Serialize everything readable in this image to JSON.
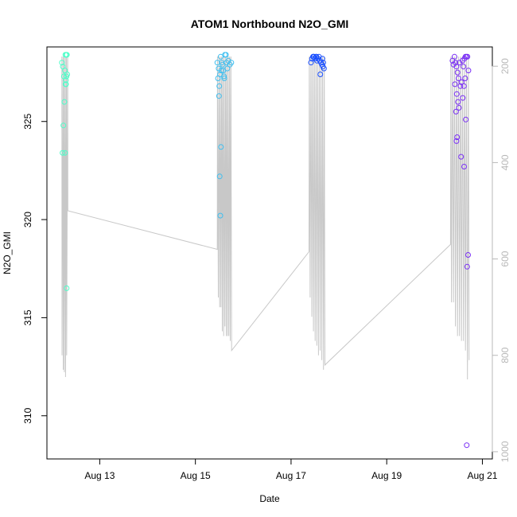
{
  "chart_data": {
    "type": "scatter",
    "title": "ATOM1 Northbound N2O_GMI",
    "xlabel": "Date",
    "ylabel": "N2O_GMI",
    "x_type": "date",
    "xlim": [
      "2016-08-11T21:30",
      "2016-08-21T05:00"
    ],
    "ylim": [
      307.8,
      328.8
    ],
    "x_ticks": [
      {
        "value": "2016-08-13T00:00",
        "label": "Aug 13"
      },
      {
        "value": "2016-08-15T00:00",
        "label": "Aug 15"
      },
      {
        "value": "2016-08-17T00:00",
        "label": "Aug 17"
      },
      {
        "value": "2016-08-19T00:00",
        "label": "Aug 19"
      },
      {
        "value": "2016-08-21T00:00",
        "label": "Aug 21"
      }
    ],
    "y_ticks": [
      310,
      315,
      320,
      325
    ],
    "right_axis": {
      "ylim_inverted": [
        1015,
        160
      ],
      "ticks": [
        200,
        400,
        600,
        800,
        1000
      ],
      "color": "#b8b8b8"
    },
    "grid": false,
    "series": [
      {
        "color": "#4dffc9",
        "points": [
          [
            "2016-08-12T05:00",
            328.0
          ],
          [
            "2016-08-12T05:30",
            327.8
          ],
          [
            "2016-08-12T06:00",
            327.3
          ],
          [
            "2016-08-12T06:15",
            326.0
          ],
          [
            "2016-08-12T05:45",
            324.8
          ],
          [
            "2016-08-12T05:20",
            323.4
          ],
          [
            "2016-08-12T06:30",
            327.6
          ],
          [
            "2016-08-12T06:45",
            328.4
          ],
          [
            "2016-08-12T07:15",
            328.4
          ],
          [
            "2016-08-12T07:30",
            328.4
          ],
          [
            "2016-08-12T07:00",
            327.1
          ],
          [
            "2016-08-12T07:20",
            327.3
          ],
          [
            "2016-08-12T07:40",
            327.4
          ],
          [
            "2016-08-12T06:50",
            326.9
          ],
          [
            "2016-08-12T06:35",
            323.4
          ],
          [
            "2016-08-12T07:05",
            326.9
          ],
          [
            "2016-08-12T07:25",
            316.5
          ]
        ]
      },
      {
        "color": "#3fbff0",
        "points": [
          [
            "2016-08-15T11:00",
            328.0
          ],
          [
            "2016-08-15T11:40",
            327.7
          ],
          [
            "2016-08-15T12:20",
            327.4
          ],
          [
            "2016-08-15T11:20",
            327.2
          ],
          [
            "2016-08-15T12:00",
            326.8
          ],
          [
            "2016-08-15T11:50",
            326.3
          ],
          [
            "2016-08-15T12:40",
            328.3
          ],
          [
            "2016-08-15T13:10",
            328.0
          ],
          [
            "2016-08-15T13:40",
            327.9
          ],
          [
            "2016-08-15T14:00",
            327.6
          ],
          [
            "2016-08-15T14:30",
            327.2
          ],
          [
            "2016-08-15T13:00",
            327.6
          ],
          [
            "2016-08-15T14:20",
            327.3
          ],
          [
            "2016-08-15T15:20",
            328.4
          ],
          [
            "2016-08-15T16:30",
            328.1
          ],
          [
            "2016-08-15T17:20",
            327.9
          ],
          [
            "2016-08-15T18:00",
            328.0
          ],
          [
            "2016-08-15T16:00",
            327.7
          ],
          [
            "2016-08-15T15:40",
            328.0
          ],
          [
            "2016-08-15T14:50",
            328.4
          ],
          [
            "2016-08-15T12:10",
            322.2
          ],
          [
            "2016-08-15T12:50",
            323.7
          ],
          [
            "2016-08-15T12:30",
            320.2
          ]
        ]
      },
      {
        "color": "#1a4fff",
        "points": [
          [
            "2016-08-17T10:00",
            328.0
          ],
          [
            "2016-08-17T10:30",
            328.2
          ],
          [
            "2016-08-17T11:00",
            328.3
          ],
          [
            "2016-08-17T11:30",
            328.3
          ],
          [
            "2016-08-17T12:00",
            328.2
          ],
          [
            "2016-08-17T12:30",
            328.3
          ],
          [
            "2016-08-17T13:00",
            328.1
          ],
          [
            "2016-08-17T13:30",
            328.2
          ],
          [
            "2016-08-17T14:00",
            328.3
          ],
          [
            "2016-08-17T14:30",
            328.1
          ],
          [
            "2016-08-17T15:00",
            328.0
          ],
          [
            "2016-08-17T15:30",
            327.9
          ],
          [
            "2016-08-17T16:00",
            327.8
          ],
          [
            "2016-08-17T16:30",
            327.7
          ],
          [
            "2016-08-17T14:40",
            327.4
          ],
          [
            "2016-08-17T11:15",
            328.3
          ],
          [
            "2016-08-17T12:45",
            328.3
          ],
          [
            "2016-08-17T15:45",
            328.2
          ],
          [
            "2016-08-17T16:10",
            328.0
          ]
        ]
      },
      {
        "color": "#7a2ff5",
        "points": [
          [
            "2016-08-20T09:00",
            328.1
          ],
          [
            "2016-08-20T09:30",
            327.9
          ],
          [
            "2016-08-20T10:00",
            328.3
          ],
          [
            "2016-08-20T10:30",
            328.0
          ],
          [
            "2016-08-20T11:00",
            327.8
          ],
          [
            "2016-08-20T11:30",
            327.5
          ],
          [
            "2016-08-20T12:00",
            327.2
          ],
          [
            "2016-08-20T12:30",
            328.0
          ],
          [
            "2016-08-20T10:15",
            326.9
          ],
          [
            "2016-08-20T11:10",
            326.4
          ],
          [
            "2016-08-20T11:45",
            326.0
          ],
          [
            "2016-08-20T10:45",
            325.5
          ],
          [
            "2016-08-20T12:15",
            325.7
          ],
          [
            "2016-08-20T11:20",
            324.2
          ],
          [
            "2016-08-20T11:00",
            324.0
          ],
          [
            "2016-08-20T13:00",
            326.8
          ],
          [
            "2016-08-20T13:30",
            327.0
          ],
          [
            "2016-08-20T14:00",
            328.1
          ],
          [
            "2016-08-20T14:30",
            327.8
          ],
          [
            "2016-08-20T15:00",
            328.2
          ],
          [
            "2016-08-20T15:30",
            328.3
          ],
          [
            "2016-08-20T16:00",
            328.3
          ],
          [
            "2016-08-20T16:30",
            328.3
          ],
          [
            "2016-08-20T17:00",
            327.6
          ],
          [
            "2016-08-20T15:20",
            327.2
          ],
          [
            "2016-08-20T14:45",
            326.8
          ],
          [
            "2016-08-20T14:10",
            326.2
          ],
          [
            "2016-08-20T14:50",
            322.7
          ],
          [
            "2016-08-20T13:20",
            323.2
          ],
          [
            "2016-08-20T15:40",
            325.1
          ],
          [
            "2016-08-20T16:20",
            317.6
          ],
          [
            "2016-08-20T16:50",
            318.2
          ],
          [
            "2016-08-20T16:10",
            308.5
          ]
        ]
      }
    ],
    "secondary_line": {
      "color": "#c8c8c8",
      "points": [
        [
          "2016-08-12T05:00",
          180
        ],
        [
          "2016-08-12T05:05",
          800
        ],
        [
          "2016-08-12T05:35",
          180
        ],
        [
          "2016-08-12T05:40",
          830
        ],
        [
          "2016-08-12T06:10",
          180
        ],
        [
          "2016-08-12T06:15",
          835
        ],
        [
          "2016-08-12T06:45",
          180
        ],
        [
          "2016-08-12T06:50",
          845
        ],
        [
          "2016-08-12T07:20",
          180
        ],
        [
          "2016-08-12T07:25",
          800
        ],
        [
          "2016-08-12T07:55",
          180
        ],
        [
          "2016-08-12T08:00",
          500
        ],
        [
          "2016-08-15T11:00",
          580
        ],
        [
          "2016-08-15T11:05",
          180
        ],
        [
          "2016-08-15T11:30",
          680
        ],
        [
          "2016-08-15T11:50",
          180
        ],
        [
          "2016-08-15T12:10",
          700
        ],
        [
          "2016-08-15T12:30",
          180
        ],
        [
          "2016-08-15T12:50",
          700
        ],
        [
          "2016-08-15T13:10",
          180
        ],
        [
          "2016-08-15T13:30",
          750
        ],
        [
          "2016-08-15T13:50",
          180
        ],
        [
          "2016-08-15T14:10",
          760
        ],
        [
          "2016-08-15T14:30",
          180
        ],
        [
          "2016-08-15T14:50",
          740
        ],
        [
          "2016-08-15T15:10",
          180
        ],
        [
          "2016-08-15T15:30",
          760
        ],
        [
          "2016-08-15T15:50",
          180
        ],
        [
          "2016-08-15T16:10",
          760
        ],
        [
          "2016-08-15T16:30",
          180
        ],
        [
          "2016-08-15T16:50",
          760
        ],
        [
          "2016-08-15T17:10",
          180
        ],
        [
          "2016-08-15T17:30",
          770
        ],
        [
          "2016-08-15T17:50",
          180
        ],
        [
          "2016-08-15T18:10",
          790
        ],
        [
          "2016-08-17T09:00",
          585
        ],
        [
          "2016-08-17T09:10",
          180
        ],
        [
          "2016-08-17T09:35",
          680
        ],
        [
          "2016-08-17T10:00",
          180
        ],
        [
          "2016-08-17T10:25",
          720
        ],
        [
          "2016-08-17T10:50",
          180
        ],
        [
          "2016-08-17T11:15",
          750
        ],
        [
          "2016-08-17T11:40",
          180
        ],
        [
          "2016-08-17T12:05",
          770
        ],
        [
          "2016-08-17T12:30",
          180
        ],
        [
          "2016-08-17T12:55",
          780
        ],
        [
          "2016-08-17T13:20",
          180
        ],
        [
          "2016-08-17T13:45",
          800
        ],
        [
          "2016-08-17T14:10",
          180
        ],
        [
          "2016-08-17T14:35",
          790
        ],
        [
          "2016-08-17T15:00",
          180
        ],
        [
          "2016-08-17T15:25",
          810
        ],
        [
          "2016-08-17T15:50",
          180
        ],
        [
          "2016-08-17T16:15",
          830
        ],
        [
          "2016-08-17T16:40",
          180
        ],
        [
          "2016-08-17T17:00",
          820
        ],
        [
          "2016-08-20T08:00",
          570
        ],
        [
          "2016-08-20T08:10",
          180
        ],
        [
          "2016-08-20T08:30",
          690
        ],
        [
          "2016-08-20T09:00",
          180
        ],
        [
          "2016-08-20T09:30",
          690
        ],
        [
          "2016-08-20T10:00",
          180
        ],
        [
          "2016-08-20T10:30",
          740
        ],
        [
          "2016-08-20T11:00",
          180
        ],
        [
          "2016-08-20T11:30",
          760
        ],
        [
          "2016-08-20T12:00",
          180
        ],
        [
          "2016-08-20T12:30",
          760
        ],
        [
          "2016-08-20T13:00",
          180
        ],
        [
          "2016-08-20T13:30",
          770
        ],
        [
          "2016-08-20T14:00",
          180
        ],
        [
          "2016-08-20T14:30",
          770
        ],
        [
          "2016-08-20T15:00",
          180
        ],
        [
          "2016-08-20T15:30",
          790
        ],
        [
          "2016-08-20T16:00",
          180
        ],
        [
          "2016-08-20T16:30",
          850
        ],
        [
          "2016-08-20T17:00",
          180
        ],
        [
          "2016-08-20T17:20",
          810
        ]
      ]
    }
  }
}
